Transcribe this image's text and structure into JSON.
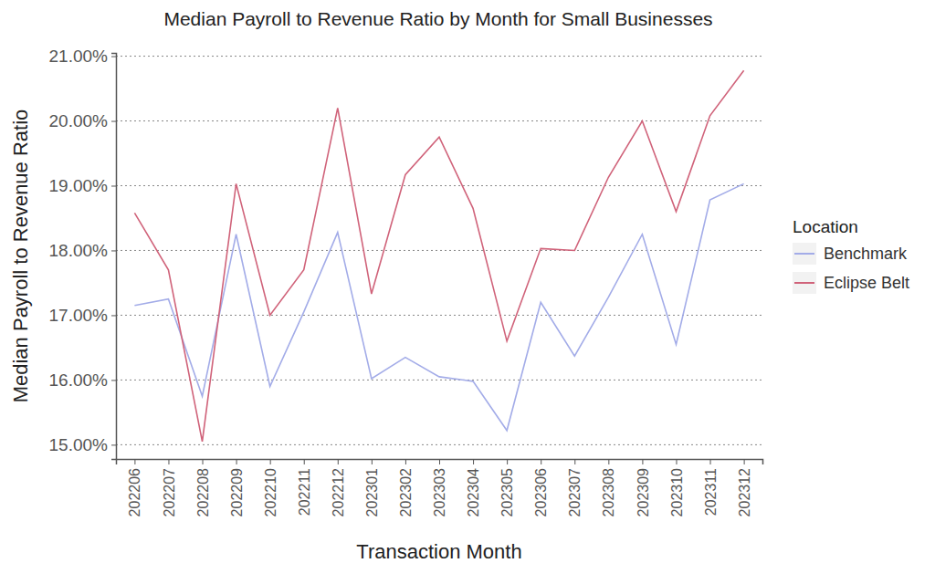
{
  "chart_data": {
    "type": "line",
    "title": "Median Payroll to Revenue Ratio by Month for Small Businesses",
    "x_label": "Transaction Month",
    "y_label": "Median Payroll to Revenue Ratio",
    "legend_title": "Location",
    "legend": "right",
    "grid": true,
    "categories": [
      "202206",
      "202207",
      "202208",
      "202209",
      "202210",
      "202211",
      "202212",
      "202301",
      "202302",
      "202303",
      "202304",
      "202305",
      "202306",
      "202307",
      "202308",
      "202309",
      "202310",
      "202311",
      "202312"
    ],
    "series": [
      {
        "name": "Benchmark",
        "color": "#a3ace8",
        "values": [
          17.15,
          17.25,
          15.75,
          18.25,
          15.9,
          17.05,
          18.28,
          16.02,
          16.35,
          16.05,
          15.98,
          15.22,
          17.2,
          16.37,
          17.28,
          18.25,
          16.55,
          18.78,
          19.03
        ]
      },
      {
        "name": "Eclipse Belt",
        "color": "#d0637a",
        "values": [
          18.58,
          17.7,
          15.05,
          19.03,
          17.0,
          17.7,
          20.2,
          17.33,
          19.17,
          19.75,
          18.65,
          16.6,
          18.03,
          18.0,
          19.13,
          20.0,
          18.6,
          20.08,
          20.78
        ]
      }
    ],
    "ylim": [
      14.78,
      21.05
    ],
    "yticks": [
      {
        "value": 15,
        "label": "15.00%"
      },
      {
        "value": 16,
        "label": "16.00%"
      },
      {
        "value": 17,
        "label": "17.00%"
      },
      {
        "value": 18,
        "label": "18.00%"
      },
      {
        "value": 19,
        "label": "19.00%"
      },
      {
        "value": 20,
        "label": "20.00%"
      },
      {
        "value": 21,
        "label": "21.00%"
      }
    ]
  }
}
